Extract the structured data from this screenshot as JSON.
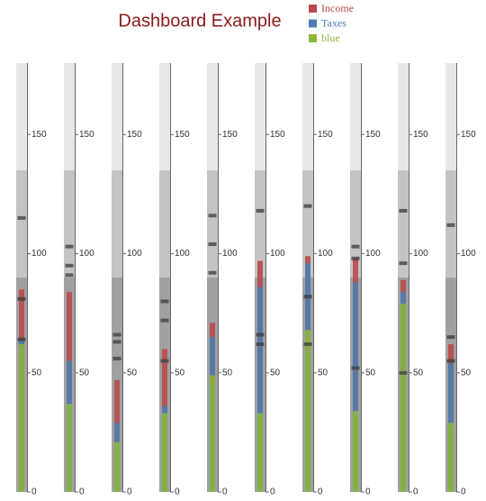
{
  "chart_data": {
    "type": "bullet",
    "title": "Dashboard Example",
    "series": [
      {
        "name": "Income",
        "color": "#b84a4a",
        "values": [
          85,
          84,
          47,
          60,
          71,
          97,
          99,
          98,
          89,
          62
        ]
      },
      {
        "name": "Taxes",
        "color": "#4a7eb4",
        "values": [
          64,
          55,
          29,
          36,
          65,
          86,
          96,
          88,
          84,
          54
        ]
      },
      {
        "name": "blue",
        "color": "#8db53c",
        "values": [
          62,
          37,
          21,
          33,
          49,
          33,
          68,
          34,
          79,
          29
        ]
      }
    ],
    "markers": [
      [
        115,
        81,
        64
      ],
      [
        103,
        95,
        91
      ],
      [
        66,
        63,
        56
      ],
      [
        80,
        72,
        55
      ],
      [
        116,
        104,
        92
      ],
      [
        118,
        66,
        62
      ],
      [
        120,
        82,
        62
      ],
      [
        103,
        98,
        52
      ],
      [
        118,
        96,
        50
      ],
      [
        112,
        65,
        55
      ]
    ],
    "ranges": [
      90,
      135,
      180
    ],
    "range_colors": [
      "#a0a0a0",
      "#c4c4c4",
      "#e8e8e8"
    ],
    "marker_color": "#444444",
    "ylim": [
      0,
      180
    ],
    "yticks": [
      0,
      50,
      100,
      150
    ]
  }
}
